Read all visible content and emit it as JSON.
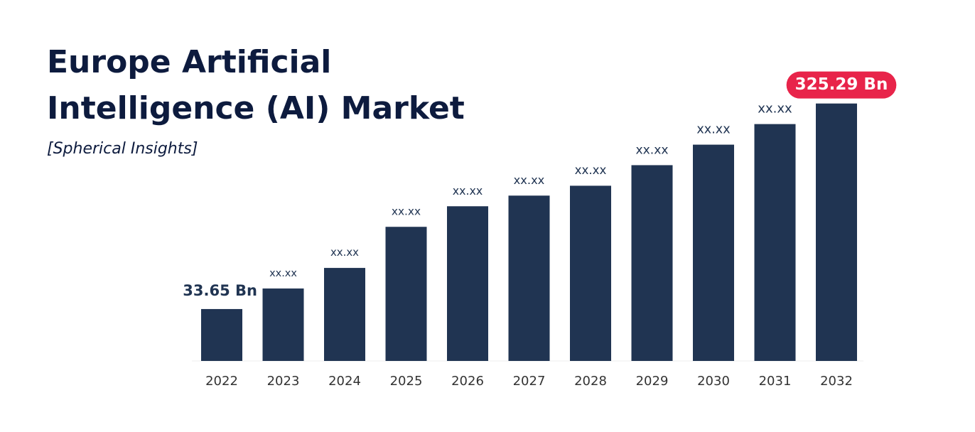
{
  "chart_data": {
    "type": "bar",
    "title_lines": [
      "Europe Artificial",
      "Intelligence (AI) Market"
    ],
    "subtitle": "[Spherical Insights]",
    "categories": [
      "2022",
      "2023",
      "2024",
      "2025",
      "2026",
      "2027",
      "2028",
      "2029",
      "2030",
      "2031",
      "2032"
    ],
    "values": [
      33.65,
      62.8,
      92.0,
      150.3,
      179.5,
      194.6,
      208.6,
      237.8,
      266.9,
      296.1,
      325.29
    ],
    "value_labels": [
      "33.65 Bn",
      "xx.xx",
      "xx.xx",
      "xx.xx",
      "xx.xx",
      "xx.xx",
      "xx.xx",
      "xx.xx",
      "xx.xx",
      "xx.xx",
      "325.29 Bn"
    ],
    "color": "#203452",
    "highlight_color": "#e8244a",
    "ylim": [
      -40,
      330
    ]
  }
}
